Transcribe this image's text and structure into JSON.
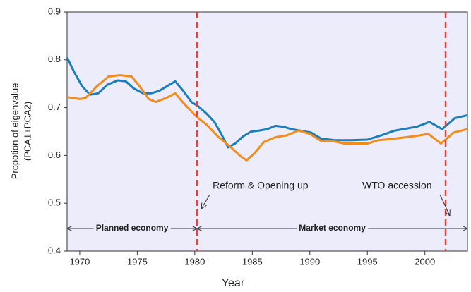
{
  "chart_data": {
    "type": "line",
    "xlabel": "Year",
    "ylabel": [
      "Propotion of eigenvalue",
      "(PCA1+PCA2)"
    ],
    "xlim": [
      1968.9,
      2003.7
    ],
    "xticks": [
      1970,
      1975,
      1980,
      1985,
      1990,
      1995,
      2000
    ],
    "ylim": [
      0.4,
      0.9
    ],
    "yticks": [
      0.4,
      0.5,
      0.6,
      0.7,
      0.8,
      0.9
    ],
    "background": "#ececfb",
    "series": [
      {
        "color": "#1a7fb8",
        "x": [
          1968.9,
          1969.5,
          1970.2,
          1970.9,
          1971.6,
          1972.4,
          1973.3,
          1974.0,
          1974.7,
          1975.5,
          1976.2,
          1976.9,
          1977.6,
          1978.3,
          1979.0,
          1979.7,
          1980.3,
          1981.0,
          1981.7,
          1982.3,
          1982.9,
          1983.5,
          1984.2,
          1984.9,
          1985.6,
          1986.3,
          1987.0,
          1987.7,
          1988.4,
          1990.1,
          1991.0,
          1992.2,
          1993.5,
          1995.0,
          1996.2,
          1997.4,
          1999.3,
          2000.4,
          2001.5,
          2002.6,
          2003.7
        ],
        "values": [
          0.805,
          0.775,
          0.745,
          0.727,
          0.73,
          0.748,
          0.757,
          0.755,
          0.74,
          0.73,
          0.73,
          0.735,
          0.745,
          0.755,
          0.735,
          0.712,
          0.703,
          0.688,
          0.67,
          0.645,
          0.617,
          0.625,
          0.64,
          0.65,
          0.652,
          0.655,
          0.662,
          0.66,
          0.655,
          0.648,
          0.635,
          0.632,
          0.632,
          0.633,
          0.642,
          0.652,
          0.66,
          0.67,
          0.655,
          0.678,
          0.684
        ]
      },
      {
        "color": "#f28c1c",
        "x": [
          1968.9,
          1970.0,
          1970.5,
          1971.5,
          1972.5,
          1973.5,
          1974.5,
          1975.2,
          1976.0,
          1976.6,
          1977.5,
          1978.3,
          1979.0,
          1980.2,
          1981.0,
          1982.0,
          1983.0,
          1984.0,
          1984.5,
          1985.2,
          1986.0,
          1987.0,
          1988.0,
          1989.0,
          1990.0,
          1991.0,
          1992.0,
          1993.0,
          1994.0,
          1995.0,
          1996.0,
          1997.0,
          1998.0,
          1999.0,
          2000.3,
          2001.4,
          2002.5,
          2003.7
        ],
        "values": [
          0.722,
          0.718,
          0.72,
          0.745,
          0.765,
          0.768,
          0.765,
          0.745,
          0.718,
          0.712,
          0.72,
          0.73,
          0.71,
          0.68,
          0.665,
          0.64,
          0.62,
          0.598,
          0.59,
          0.605,
          0.628,
          0.638,
          0.642,
          0.652,
          0.645,
          0.63,
          0.63,
          0.625,
          0.625,
          0.625,
          0.632,
          0.634,
          0.637,
          0.64,
          0.645,
          0.625,
          0.648,
          0.655
        ]
      }
    ],
    "vlines": [
      {
        "x": 1980.2,
        "color": "#e8423f",
        "label": "Reform & Opening up",
        "period": "Planned economy"
      },
      {
        "x": 2001.8,
        "color": "#e8423f",
        "label": "WTO accession",
        "period": "Market economy"
      }
    ]
  }
}
